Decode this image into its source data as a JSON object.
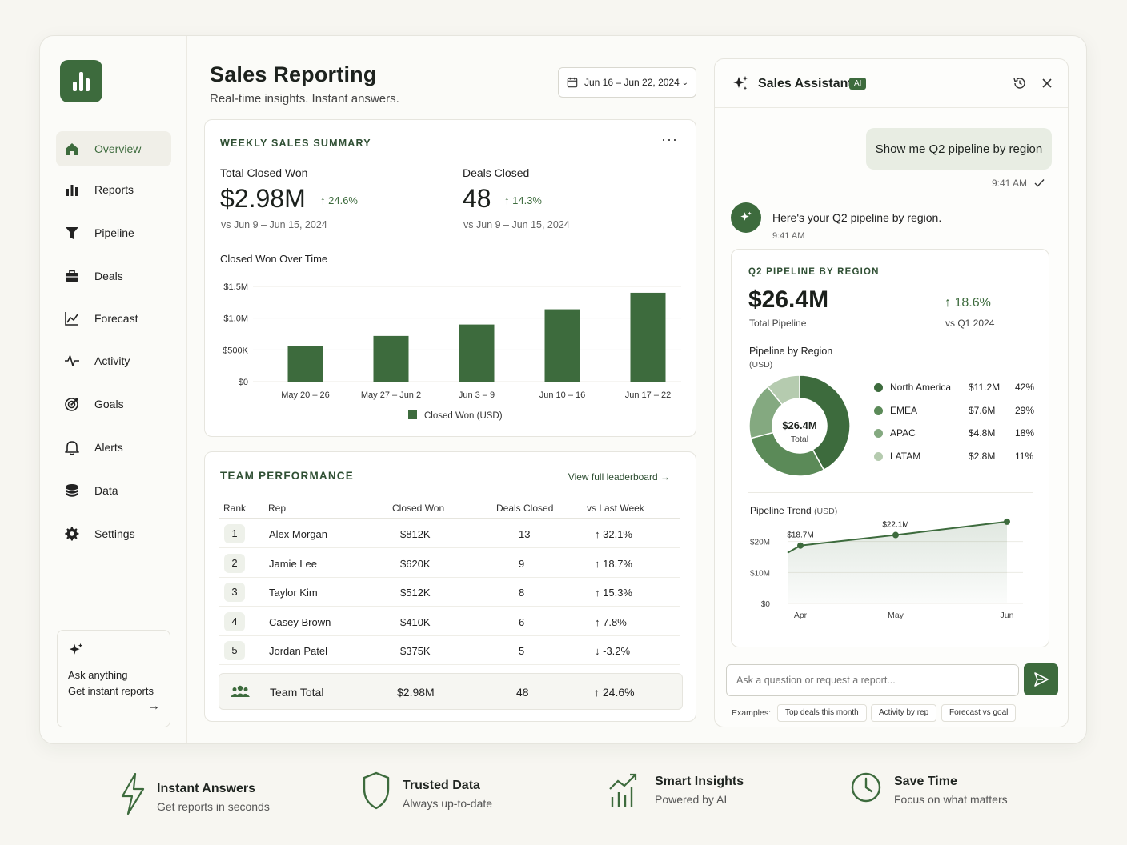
{
  "header": {
    "title": "Sales Reporting",
    "subtitle": "Real-time insights. Instant answers.",
    "date_range": "Jun 16 – Jun 22, 2024"
  },
  "sidebar": {
    "items": [
      {
        "label": "Overview",
        "icon": "home-icon",
        "active": true
      },
      {
        "label": "Reports",
        "icon": "bar-chart-icon"
      },
      {
        "label": "Pipeline",
        "icon": "funnel-icon"
      },
      {
        "label": "Deals",
        "icon": "briefcase-icon"
      },
      {
        "label": "Forecast",
        "icon": "line-chart-icon"
      },
      {
        "label": "Activity",
        "icon": "pulse-icon"
      },
      {
        "label": "Goals",
        "icon": "target-icon"
      },
      {
        "label": "Alerts",
        "icon": "bell-icon"
      },
      {
        "label": "Data",
        "icon": "database-icon"
      },
      {
        "label": "Settings",
        "icon": "gear-icon"
      }
    ],
    "ask": {
      "line1": "Ask anything",
      "line2": "Get instant reports"
    }
  },
  "weekly": {
    "title": "WEEKLY SALES SUMMARY",
    "kpi1": {
      "label": "Total Closed Won",
      "value": "$2.98M",
      "delta": "24.6%",
      "sub": "vs Jun 9 – Jun 15, 2024"
    },
    "kpi2": {
      "label": "Deals Closed",
      "value": "48",
      "delta": "14.3%",
      "sub": "vs Jun 9 – Jun 15, 2024"
    },
    "chart_title": "Closed Won Over Time"
  },
  "team": {
    "title": "TEAM PERFORMANCE",
    "link": "View full leaderboard",
    "headers": {
      "rank": "Rank",
      "rep": "Rep",
      "won": "Closed Won",
      "deals": "Deals Closed",
      "vs": "vs Last Week"
    },
    "rows": [
      {
        "rank": "1",
        "rep": "Alex Morgan",
        "won": "$812K",
        "deals": "13",
        "vs": "32.1%",
        "dir": "up"
      },
      {
        "rank": "2",
        "rep": "Jamie Lee",
        "won": "$620K",
        "deals": "9",
        "vs": "18.7%",
        "dir": "up"
      },
      {
        "rank": "3",
        "rep": "Taylor Kim",
        "won": "$512K",
        "deals": "8",
        "vs": "15.3%",
        "dir": "up"
      },
      {
        "rank": "4",
        "rep": "Casey Brown",
        "won": "$410K",
        "deals": "6",
        "vs": "7.8%",
        "dir": "up"
      },
      {
        "rank": "5",
        "rep": "Jordan Patel",
        "won": "$375K",
        "deals": "5",
        "vs": "-3.2%",
        "dir": "down"
      }
    ],
    "total": {
      "label": "Team Total",
      "won": "$2.98M",
      "deals": "48",
      "vs": "24.6%"
    }
  },
  "assistant": {
    "title": "Sales Assistant",
    "badge": "AI",
    "user_msg": "Show me Q2 pipeline by region",
    "user_time": "9:41 AM",
    "bot_msg": "Here's your Q2 pipeline by region.",
    "bot_time": "9:41 AM",
    "card": {
      "title": "Q2 PIPELINE BY REGION",
      "value": "$26.4M",
      "value_label": "Total Pipeline",
      "delta": "18.6%",
      "delta_sub": "vs Q1 2024",
      "region_title": "Pipeline by Region",
      "region_unit": "(USD)",
      "donut_center": "$26.4M",
      "donut_sub": "Total",
      "trend_title": "Pipeline Trend",
      "trend_unit": "(USD)"
    },
    "input_placeholder": "Ask a question or request a report...",
    "examples_label": "Examples:",
    "examples": [
      "Top deals this month",
      "Activity by rep",
      "Forecast vs goal"
    ]
  },
  "features": [
    {
      "title": "Instant Answers",
      "sub": "Get reports in seconds",
      "icon": "lightning-icon"
    },
    {
      "title": "Trusted Data",
      "sub": "Always up-to-date",
      "icon": "shield-icon"
    },
    {
      "title": "Smart Insights",
      "sub": "Powered by AI",
      "icon": "insights-chart-icon"
    },
    {
      "title": "Save Time",
      "sub": "Focus on what matters",
      "icon": "clock-icon"
    }
  ],
  "colors": {
    "accent": "#3d6b3d",
    "down": "#c0392b"
  },
  "chart_data": [
    {
      "type": "bar",
      "title": "Closed Won Over Time",
      "categories": [
        "May 20 – 26",
        "May 27 – Jun 2",
        "Jun 3 – 9",
        "Jun 10 – 16",
        "Jun 17 – 22"
      ],
      "series": [
        {
          "name": "Closed Won (USD)",
          "values": [
            560000,
            720000,
            900000,
            1140000,
            1400000
          ]
        }
      ],
      "yticks": [
        "$0",
        "$500K",
        "$1.0M",
        "$1.5M"
      ],
      "ylim": [
        0,
        1500000
      ],
      "legend": "bottom"
    },
    {
      "type": "pie",
      "title": "Pipeline by Region",
      "labels": [
        "North America",
        "EMEA",
        "APAC",
        "LATAM"
      ],
      "values": [
        "$11.2M",
        "$7.6M",
        "$4.8M",
        "$2.8M"
      ],
      "percents": [
        "42%",
        "29%",
        "18%",
        "11%"
      ],
      "shares": [
        42,
        29,
        18,
        11
      ],
      "colors": [
        "#3d6b3d",
        "#5b8a58",
        "#84a980",
        "#b5cbaf"
      ]
    },
    {
      "type": "area",
      "title": "Pipeline Trend",
      "categories": [
        "Apr",
        "May",
        "Jun"
      ],
      "values": [
        18.7,
        22.1,
        26.4
      ],
      "point_labels": [
        "$18.7M",
        "$22.1M",
        "$26.4M"
      ],
      "yticks": [
        "$0",
        "$10M",
        "$20M",
        "$30M"
      ],
      "ylim": [
        0,
        30
      ]
    }
  ]
}
